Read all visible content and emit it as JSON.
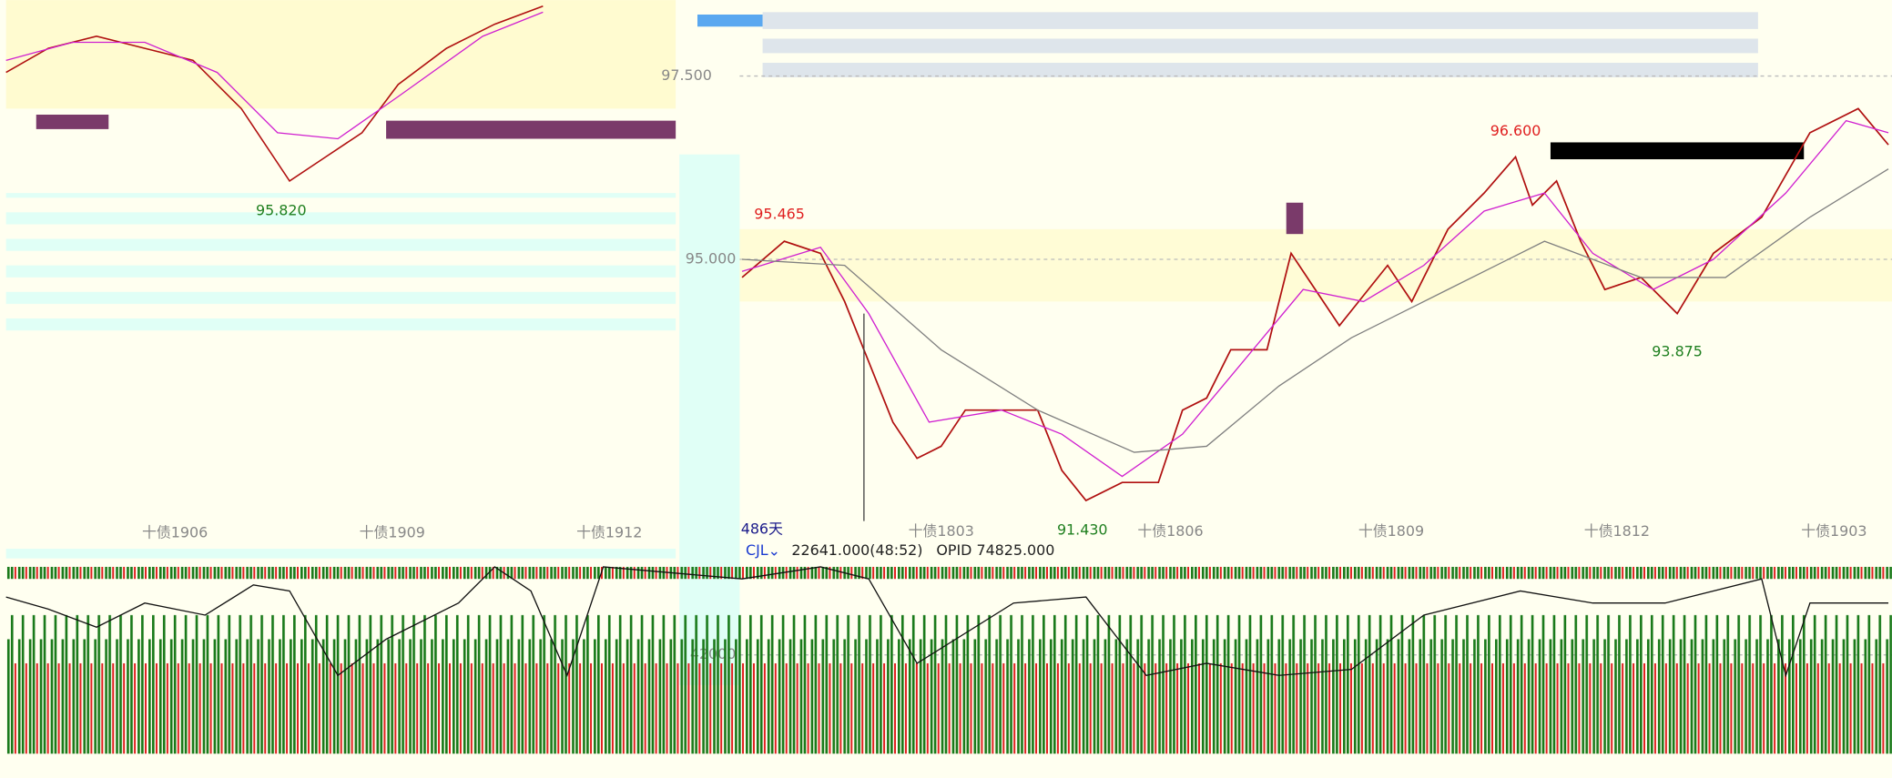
{
  "left_panel": {
    "low_label": "95.820",
    "x_labels": [
      "十债1906",
      "十债1909",
      "十债1912"
    ]
  },
  "main_panel": {
    "y_labels": [
      "97.500",
      "95.000"
    ],
    "high_label_left": "95.465",
    "high_label_right": "96.600",
    "low_label_right": "93.875",
    "low_label": "91.430",
    "period": "486天",
    "x_labels": [
      "十债1803",
      "十债1806",
      "十债1809",
      "十债1812",
      "十债1903"
    ]
  },
  "volume_panel": {
    "indicator": "CJL",
    "volume_info": "22641.000(48:52)",
    "opid_info": "OPID 74825.000",
    "y_label": "42000"
  }
}
